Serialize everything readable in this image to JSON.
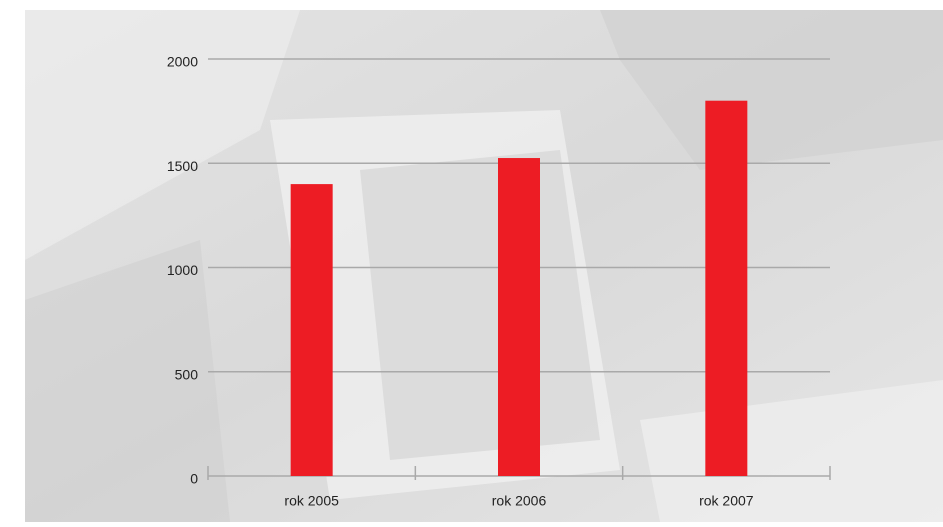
{
  "chart_data": {
    "type": "bar",
    "categories": [
      "rok 2005",
      "rok 2006",
      "rok 2007"
    ],
    "values": [
      1400,
      1525,
      1800
    ],
    "color": "#ed1c24",
    "ylim": [
      0,
      2000
    ],
    "yticks": [
      0,
      500,
      1000,
      1500,
      2000
    ],
    "grid": true
  }
}
